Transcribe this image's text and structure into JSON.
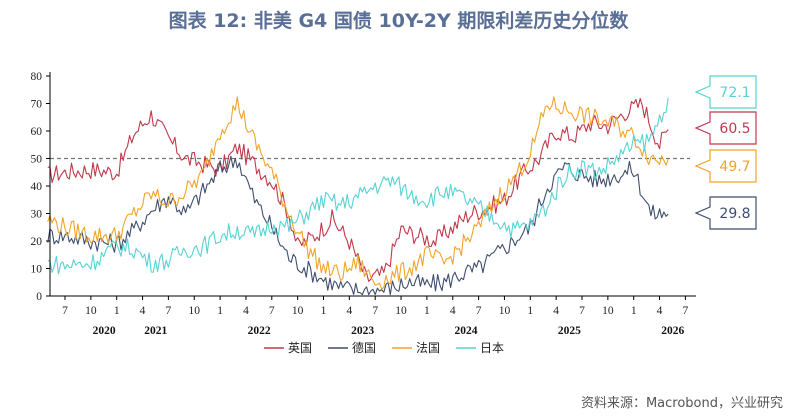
{
  "title": "图表 12: 非美 G4 国债 10Y-2Y 期限利差历史分位数",
  "source": "资料来源：Macrobond，兴业研究",
  "colors": {
    "英国": "#c0384b",
    "德国": "#3f4e6e",
    "法国": "#f0a42a",
    "日本": "#56d3d3",
    "axis": "#000000",
    "ref": "#777777"
  },
  "chart_data": {
    "type": "line",
    "ylim": [
      0,
      80
    ],
    "yticks": [
      0,
      10,
      20,
      30,
      40,
      50,
      60,
      70,
      80
    ],
    "reference_line": 50,
    "x_start": "2020-05",
    "x_end": "2026-07",
    "month_ticks": [
      "7",
      "10",
      "1",
      "4",
      "7",
      "10",
      "1",
      "4",
      "7",
      "10",
      "1",
      "4",
      "7",
      "10",
      "1",
      "4",
      "7",
      "10",
      "1",
      "4",
      "7",
      "10",
      "1",
      "4",
      "7"
    ],
    "year_labels": [
      {
        "label": "2020",
        "month_index": 5
      },
      {
        "label": "2021",
        "month_index": 11
      },
      {
        "label": "2022",
        "month_index": 23
      },
      {
        "label": "2023",
        "month_index": 35
      },
      {
        "label": "2024",
        "month_index": 47
      },
      {
        "label": "2025",
        "month_index": 59
      },
      {
        "label": "2026",
        "month_index": 71
      }
    ],
    "series": [
      {
        "name": "英国",
        "color": "#c0384b",
        "last": "60.5",
        "x": [
          "2020-05",
          "2020-07",
          "2020-10",
          "2021-01",
          "2021-03",
          "2021-05",
          "2021-07",
          "2021-09",
          "2021-11",
          "2022-01",
          "2022-03",
          "2022-05",
          "2022-07",
          "2022-09",
          "2022-10",
          "2022-12",
          "2023-02",
          "2023-04",
          "2023-06",
          "2023-08",
          "2023-10",
          "2023-12",
          "2024-02",
          "2024-04",
          "2024-06",
          "2024-08",
          "2024-10",
          "2024-12",
          "2025-02",
          "2025-04",
          "2025-06",
          "2025-08",
          "2025-10",
          "2025-12",
          "2026-02",
          "2026-04",
          "2026-05"
        ],
        "values": [
          44,
          45,
          46,
          45,
          59,
          66,
          57,
          50,
          48,
          46,
          54,
          48,
          42,
          30,
          18,
          22,
          28,
          20,
          6,
          8,
          24,
          22,
          20,
          25,
          30,
          32,
          35,
          44,
          50,
          60,
          58,
          63,
          62,
          67,
          70,
          55,
          60.5
        ]
      },
      {
        "name": "德国",
        "color": "#3f4e6e",
        "last": "29.8",
        "x": [
          "2020-05",
          "2020-07",
          "2020-10",
          "2021-01",
          "2021-03",
          "2021-05",
          "2021-07",
          "2021-09",
          "2021-11",
          "2022-01",
          "2022-03",
          "2022-05",
          "2022-07",
          "2022-09",
          "2022-11",
          "2023-01",
          "2023-03",
          "2023-05",
          "2023-07",
          "2023-09",
          "2023-11",
          "2024-01",
          "2024-03",
          "2024-05",
          "2024-07",
          "2024-09",
          "2024-11",
          "2025-01",
          "2025-03",
          "2025-05",
          "2025-07",
          "2025-09",
          "2025-11",
          "2026-01",
          "2026-03",
          "2026-05"
        ],
        "values": [
          22,
          22,
          20,
          19,
          24,
          31,
          36,
          30,
          38,
          46,
          50,
          35,
          25,
          14,
          10,
          6,
          3,
          2,
          2,
          3,
          5,
          4,
          5,
          8,
          10,
          15,
          20,
          25,
          40,
          47,
          44,
          42,
          44,
          46,
          30,
          29.8
        ]
      },
      {
        "name": "法国",
        "color": "#f0a42a",
        "last": "49.7",
        "x": [
          "2020-05",
          "2020-07",
          "2020-10",
          "2021-01",
          "2021-03",
          "2021-05",
          "2021-07",
          "2021-09",
          "2021-11",
          "2022-01",
          "2022-03",
          "2022-05",
          "2022-07",
          "2022-09",
          "2022-11",
          "2023-01",
          "2023-03",
          "2023-05",
          "2023-07",
          "2023-09",
          "2023-11",
          "2024-01",
          "2024-03",
          "2024-05",
          "2024-07",
          "2024-09",
          "2024-11",
          "2025-01",
          "2025-03",
          "2025-05",
          "2025-07",
          "2025-09",
          "2025-11",
          "2026-01",
          "2026-03",
          "2026-05"
        ],
        "values": [
          28,
          25,
          22,
          22,
          30,
          37,
          34,
          38,
          44,
          60,
          70,
          56,
          45,
          30,
          18,
          10,
          8,
          12,
          5,
          7,
          10,
          15,
          12,
          18,
          25,
          35,
          42,
          52,
          70,
          68,
          66,
          64,
          62,
          58,
          50,
          49.7
        ]
      },
      {
        "name": "日本",
        "color": "#56d3d3",
        "last": "72.1",
        "x": [
          "2020-05",
          "2020-07",
          "2020-10",
          "2021-01",
          "2021-03",
          "2021-05",
          "2021-07",
          "2021-09",
          "2021-11",
          "2022-01",
          "2022-03",
          "2022-05",
          "2022-07",
          "2022-09",
          "2022-11",
          "2023-01",
          "2023-03",
          "2023-05",
          "2023-07",
          "2023-09",
          "2023-11",
          "2024-01",
          "2024-03",
          "2024-05",
          "2024-07",
          "2024-09",
          "2024-11",
          "2025-01",
          "2025-03",
          "2025-05",
          "2025-07",
          "2025-09",
          "2025-11",
          "2026-01",
          "2026-03",
          "2026-05"
        ],
        "values": [
          12,
          11,
          12,
          18,
          17,
          12,
          13,
          17,
          18,
          22,
          24,
          22,
          26,
          25,
          30,
          35,
          33,
          36,
          40,
          42,
          37,
          35,
          38,
          36,
          32,
          28,
          24,
          26,
          33,
          44,
          47,
          45,
          50,
          55,
          57,
          72.1
        ]
      }
    ]
  }
}
